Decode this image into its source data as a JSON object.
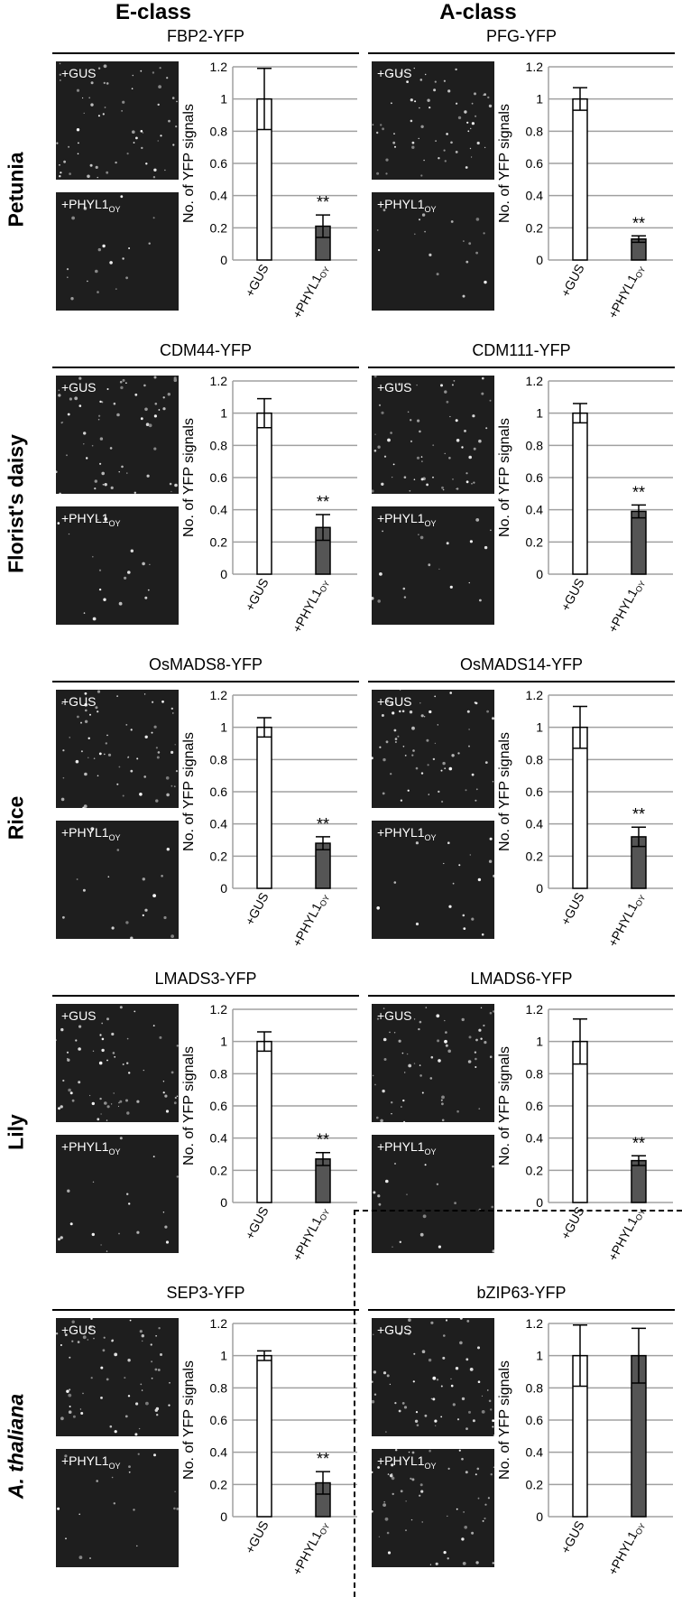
{
  "column_titles": [
    "E-class",
    "A-class"
  ],
  "rows": [
    {
      "label": "Petunia",
      "italic": false
    },
    {
      "label": "Florist's daisy",
      "italic": false
    },
    {
      "label": "Rice",
      "italic": false
    },
    {
      "label": "Lily",
      "italic": false
    },
    {
      "label": "A. thaliana",
      "italic": true
    }
  ],
  "image_labels": {
    "top": "+GUS",
    "bottom_main": "+PHYL1",
    "bottom_sub": "OY"
  },
  "colors": {
    "control_bar": "#ffffff",
    "treatment_bar": "#555555",
    "grid": "#a0a0a0",
    "micro_bg": "#1e1e1e"
  },
  "chart_data": [
    {
      "type": "bar",
      "title": "FBP2-YFP",
      "ylabel": "No. of YFP signals",
      "categories": [
        "+GUS",
        "+PHYL1OY"
      ],
      "values": [
        1.0,
        0.21
      ],
      "errors": [
        0.19,
        0.07
      ],
      "ylim": [
        0,
        1.2
      ],
      "yticks": [
        "0",
        "0.2",
        "0.4",
        "0.6",
        "0.8",
        "1",
        "1.2"
      ],
      "significance": "**",
      "grid": true
    },
    {
      "type": "bar",
      "title": "PFG-YFP",
      "ylabel": "No. of YFP signals",
      "categories": [
        "+GUS",
        "+PHYL1OY"
      ],
      "values": [
        1.0,
        0.13
      ],
      "errors": [
        0.07,
        0.02
      ],
      "ylim": [
        0,
        1.2
      ],
      "yticks": [
        "0",
        "0.2",
        "0.4",
        "0.6",
        "0.8",
        "1",
        "1.2"
      ],
      "significance": "**",
      "grid": true
    },
    {
      "type": "bar",
      "title": "CDM44-YFP",
      "ylabel": "No. of YFP signals",
      "categories": [
        "+GUS",
        "+PHYL1OY"
      ],
      "values": [
        1.0,
        0.29
      ],
      "errors": [
        0.09,
        0.08
      ],
      "ylim": [
        0,
        1.2
      ],
      "yticks": [
        "0",
        "0.2",
        "0.4",
        "0.6",
        "0.8",
        "1",
        "1.2"
      ],
      "significance": "**",
      "grid": true
    },
    {
      "type": "bar",
      "title": "CDM111-YFP",
      "ylabel": "No. of YFP signals",
      "categories": [
        "+GUS",
        "+PHYL1OY"
      ],
      "values": [
        1.0,
        0.39
      ],
      "errors": [
        0.06,
        0.04
      ],
      "ylim": [
        0,
        1.2
      ],
      "yticks": [
        "0",
        "0.2",
        "0.4",
        "0.6",
        "0.8",
        "1",
        "1.2"
      ],
      "significance": "**",
      "grid": true
    },
    {
      "type": "bar",
      "title": "OsMADS8-YFP",
      "ylabel": "No. of YFP signals",
      "categories": [
        "+GUS",
        "+PHYL1OY"
      ],
      "values": [
        1.0,
        0.28
      ],
      "errors": [
        0.06,
        0.04
      ],
      "ylim": [
        0,
        1.2
      ],
      "yticks": [
        "0",
        "0.2",
        "0.4",
        "0.6",
        "0.8",
        "1",
        "1.2"
      ],
      "significance": "**",
      "grid": true
    },
    {
      "type": "bar",
      "title": "OsMADS14-YFP",
      "ylabel": "No. of YFP signals",
      "categories": [
        "+GUS",
        "+PHYL1OY"
      ],
      "values": [
        1.0,
        0.32
      ],
      "errors": [
        0.13,
        0.06
      ],
      "ylim": [
        0,
        1.2
      ],
      "yticks": [
        "0",
        "0.2",
        "0.4",
        "0.6",
        "0.8",
        "1",
        "1.2"
      ],
      "significance": "**",
      "grid": true
    },
    {
      "type": "bar",
      "title": "LMADS3-YFP",
      "ylabel": "No. of YFP signals",
      "categories": [
        "+GUS",
        "+PHYL1OY"
      ],
      "values": [
        1.0,
        0.27
      ],
      "errors": [
        0.06,
        0.04
      ],
      "ylim": [
        0,
        1.2
      ],
      "yticks": [
        "0",
        "0.2",
        "0.4",
        "0.6",
        "0.8",
        "1",
        "1.2"
      ],
      "significance": "**",
      "grid": true
    },
    {
      "type": "bar",
      "title": "LMADS6-YFP",
      "ylabel": "No. of YFP signals",
      "categories": [
        "+GUS",
        "+PHYL1OY"
      ],
      "values": [
        1.0,
        0.26
      ],
      "errors": [
        0.14,
        0.03
      ],
      "ylim": [
        0,
        1.2
      ],
      "yticks": [
        "0",
        "0.2",
        "0.4",
        "0.6",
        "0.8",
        "1",
        "1.2"
      ],
      "significance": "**",
      "grid": true
    },
    {
      "type": "bar",
      "title": "SEP3-YFP",
      "ylabel": "No. of YFP signals",
      "categories": [
        "+GUS",
        "+PHYL1OY"
      ],
      "values": [
        1.0,
        0.21
      ],
      "errors": [
        0.03,
        0.07
      ],
      "ylim": [
        0,
        1.2
      ],
      "yticks": [
        "0",
        "0.2",
        "0.4",
        "0.6",
        "0.8",
        "1",
        "1.2"
      ],
      "significance": "**",
      "grid": true
    },
    {
      "type": "bar",
      "title": "bZIP63-YFP",
      "ylabel": "No. of YFP signals",
      "categories": [
        "+GUS",
        "+PHYL1OY"
      ],
      "values": [
        1.0,
        1.0
      ],
      "errors": [
        0.19,
        0.17
      ],
      "ylim": [
        0,
        1.2
      ],
      "yticks": [
        "0",
        "0.2",
        "0.4",
        "0.6",
        "0.8",
        "1",
        "1.2"
      ],
      "significance": "",
      "grid": true
    }
  ]
}
